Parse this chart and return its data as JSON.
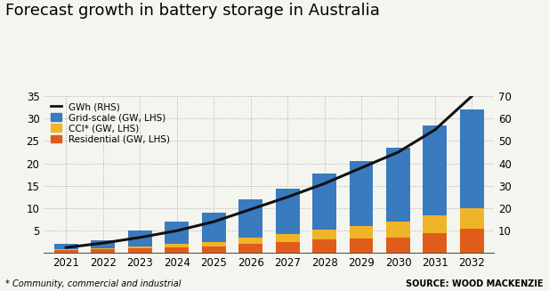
{
  "years": [
    2021,
    2022,
    2023,
    2024,
    2025,
    2026,
    2027,
    2030,
    2031,
    2032
  ],
  "years_all": [
    2021,
    2022,
    2023,
    2024,
    2025,
    2026,
    2027,
    2028,
    2029,
    2030,
    2031,
    2032
  ],
  "grid_scale": [
    1.2,
    1.8,
    3.5,
    5.0,
    6.5,
    8.5,
    10.0,
    12.5,
    14.5,
    16.5,
    20.0,
    22.0
  ],
  "cci": [
    0.2,
    0.3,
    0.5,
    0.8,
    1.0,
    1.5,
    1.8,
    2.2,
    2.8,
    3.5,
    4.0,
    4.5
  ],
  "residential": [
    0.6,
    0.8,
    1.0,
    1.2,
    1.5,
    2.0,
    2.5,
    3.0,
    3.2,
    3.5,
    4.5,
    5.5
  ],
  "gwh_line": [
    2.5,
    4.5,
    7.0,
    10.0,
    14.0,
    19.5,
    25.0,
    31.0,
    38.0,
    45.0,
    55.0,
    70.0
  ],
  "bar_color_grid": "#3a7abf",
  "bar_color_cci": "#f0b429",
  "bar_color_residential": "#e05c1a",
  "line_color": "#111111",
  "background_color": "#f5f5f0",
  "title": "Forecast growth in battery storage in Australia",
  "ylim_left": [
    0,
    35
  ],
  "ylim_right": [
    0,
    70
  ],
  "yticks_left": [
    5,
    10,
    15,
    20,
    25,
    30,
    35
  ],
  "yticks_right": [
    10,
    20,
    30,
    40,
    50,
    60,
    70
  ],
  "legend_gwh": "GWh (RHS)",
  "legend_grid": "Grid-scale (GW, LHS)",
  "legend_cci": "CCI* (GW, LHS)",
  "legend_residential": "Residential (GW, LHS)",
  "footnote": "* Community, commercial and industrial",
  "source": "SOURCE: WOOD MACKENZIE",
  "title_fontsize": 13,
  "tick_fontsize": 8.5,
  "legend_fontsize": 7.5
}
